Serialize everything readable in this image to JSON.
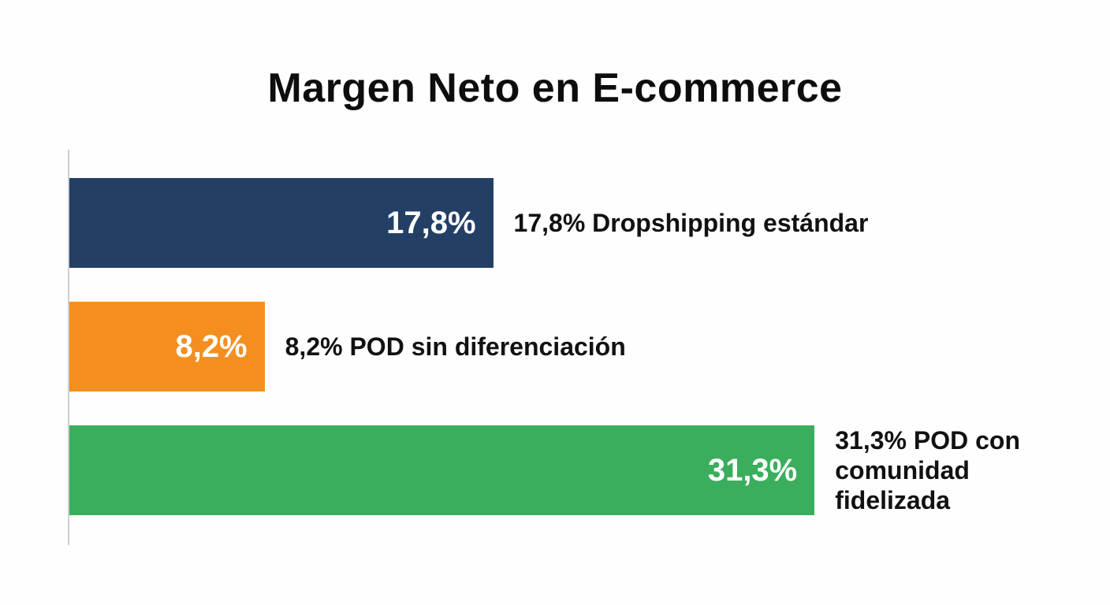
{
  "chart_data": {
    "type": "bar",
    "orientation": "horizontal",
    "title": "Margen Neto en E-commerce",
    "xlabel": "",
    "ylabel": "",
    "xlim": [
      0,
      32
    ],
    "grid": false,
    "categories": [
      "Dropshipping estándar",
      "POD sin diferenciación",
      "POD con comunidad fidelizada"
    ],
    "values": [
      17.8,
      8.2,
      31.3
    ],
    "value_labels": [
      "17,8%",
      "8,2%",
      "31,3%"
    ],
    "bar_labels": [
      [
        "17,8% Dropshipping estándar"
      ],
      [
        "8,2% POD sin diferenciación"
      ],
      [
        "31,3% POD con",
        "comunidad",
        "fidelizada"
      ]
    ],
    "colors": [
      "#233f66",
      "#f48f1f",
      "#3aae5c"
    ]
  }
}
